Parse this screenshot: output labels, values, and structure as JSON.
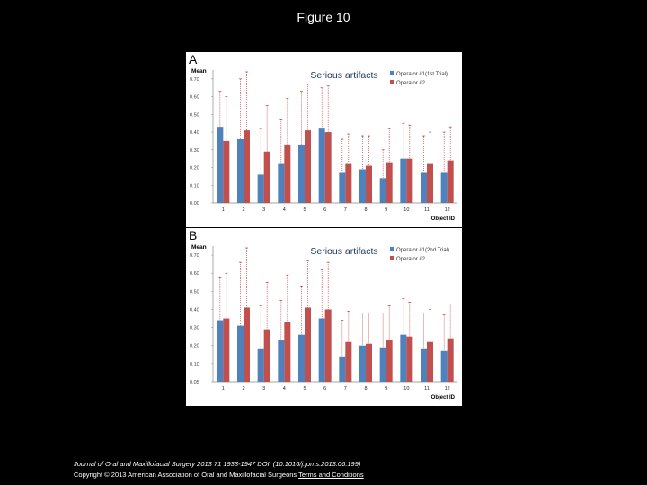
{
  "figure_title": "Figure 10",
  "footer": {
    "citation": "Journal of Oral and Maxillofacial Surgery 2013 71 1933-1947 DOI: (10.1016/j.joms.2013.06.199)",
    "copyright": "Copyright © 2013 American Association of Oral and Maxillofacial Surgeons",
    "terms_link": "Terms and Conditions"
  },
  "colors": {
    "series1": "#4f81bd",
    "series2": "#c0504d",
    "title_text": "#1f3864",
    "error_bar": "#b22222"
  },
  "chart_data": [
    {
      "type": "bar",
      "panel_label": "A",
      "title": "Serious artifacts",
      "ylabel": "Mean",
      "xlabel": "Object ID",
      "ylim": [
        0,
        0.75
      ],
      "yticks": [
        "0.00",
        "0.10",
        "0.20",
        "0.30",
        "0.40",
        "0.50",
        "0.60",
        "0.70"
      ],
      "categories": [
        "1",
        "2",
        "3",
        "4",
        "5",
        "6",
        "7",
        "8",
        "9",
        "10",
        "11",
        "12"
      ],
      "legend_position": "top-right",
      "series": [
        {
          "name": "Operator #1(1st Trial)",
          "values": [
            0.43,
            0.36,
            0.16,
            0.22,
            0.33,
            0.42,
            0.17,
            0.19,
            0.14,
            0.25,
            0.17,
            0.17
          ],
          "error_high": [
            0.63,
            0.7,
            0.42,
            0.47,
            0.63,
            0.65,
            0.36,
            0.38,
            0.3,
            0.45,
            0.38,
            0.4
          ]
        },
        {
          "name": "Operator #2",
          "values": [
            0.35,
            0.41,
            0.29,
            0.33,
            0.41,
            0.4,
            0.22,
            0.21,
            0.23,
            0.25,
            0.22,
            0.24
          ],
          "error_high": [
            0.6,
            0.74,
            0.55,
            0.59,
            0.67,
            0.66,
            0.39,
            0.38,
            0.42,
            0.44,
            0.4,
            0.43
          ]
        }
      ]
    },
    {
      "type": "bar",
      "panel_label": "B",
      "title": "Serious artifacts",
      "ylabel": "Mean",
      "xlabel": "Object ID",
      "ylim": [
        0,
        0.75
      ],
      "yticks": [
        "0.05",
        "0.10",
        "0.20",
        "0.30",
        "0.40",
        "0.50",
        "0.60",
        "0.70"
      ],
      "categories": [
        "1",
        "2",
        "3",
        "4",
        "5",
        "6",
        "7",
        "8",
        "9",
        "10",
        "11",
        "12"
      ],
      "legend_position": "top-right",
      "series": [
        {
          "name": "Operator #1(2nd Trial)",
          "values": [
            0.34,
            0.31,
            0.18,
            0.23,
            0.26,
            0.35,
            0.14,
            0.2,
            0.19,
            0.26,
            0.18,
            0.17
          ],
          "error_high": [
            0.58,
            0.66,
            0.42,
            0.45,
            0.53,
            0.62,
            0.34,
            0.38,
            0.38,
            0.46,
            0.38,
            0.37
          ]
        },
        {
          "name": "Operator #2",
          "values": [
            0.35,
            0.41,
            0.29,
            0.33,
            0.41,
            0.4,
            0.22,
            0.21,
            0.23,
            0.25,
            0.22,
            0.24
          ],
          "error_high": [
            0.6,
            0.74,
            0.55,
            0.59,
            0.67,
            0.66,
            0.39,
            0.38,
            0.42,
            0.44,
            0.4,
            0.43
          ]
        }
      ]
    }
  ]
}
